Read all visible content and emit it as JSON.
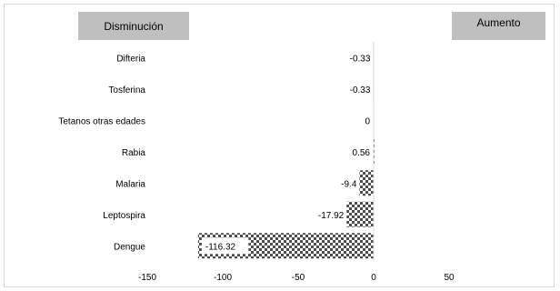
{
  "headers": {
    "left": "Disminución",
    "right": "Aumento"
  },
  "colors": {
    "bar_dark": "#4d4d4d",
    "bar_light": "#ffffff",
    "header_fill": "#bfbfbf",
    "label_fill": "#ffffff"
  },
  "chart_data": {
    "type": "bar",
    "orientation": "horizontal",
    "categories": [
      "Difteria",
      "Tosferina",
      "Tetanos otras edades",
      "Rabia",
      "Malaria",
      "Leptospira",
      "Dengue"
    ],
    "values": [
      -0.33,
      -0.33,
      0,
      0.56,
      -9.4,
      -17.92,
      -116.32
    ],
    "value_labels": [
      "-0.33",
      "-0.33",
      "0",
      "0.56",
      "-9.4",
      "-17.92",
      "-116.32"
    ],
    "xlim": [
      -150,
      50
    ],
    "xticks": [
      "-150",
      "-100",
      "-50",
      "0",
      "50"
    ],
    "grid": false,
    "legend": "none"
  }
}
